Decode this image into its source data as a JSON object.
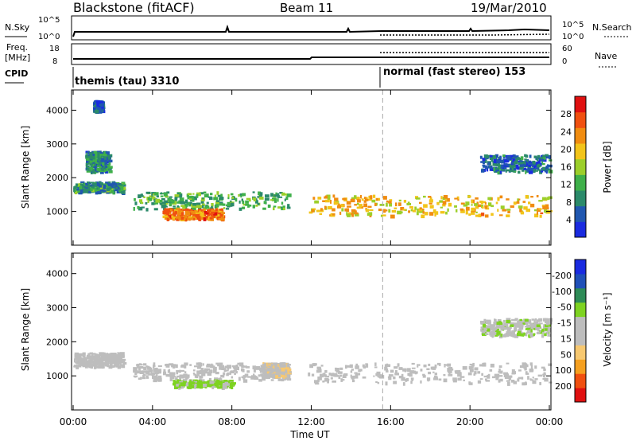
{
  "header": {
    "station": "Blackstone (fitACF)",
    "beam": "Beam 11",
    "date": "19/Mar/2010"
  },
  "status_panels": {
    "nsky": {
      "label": "N.Sky",
      "tick_labels": [
        "10^5",
        "10^0"
      ],
      "right_label": "N.Search",
      "right_tick_labels": [
        "10^5",
        "10^0"
      ]
    },
    "freq": {
      "label_line1": "Freq.",
      "label_line2": "[MHz]",
      "tick_labels": [
        "18",
        "8"
      ],
      "right_label": "Nave",
      "right_tick_labels": [
        "60",
        "0"
      ]
    },
    "cpid": {
      "label": "CPID",
      "segments": [
        {
          "text": "themis (tau) 3310",
          "start_hour": 0
        },
        {
          "text": "normal (fast stereo) 153",
          "start_hour": 15.6
        }
      ]
    }
  },
  "x_axis": {
    "label": "Time UT",
    "range_hours": [
      0,
      24
    ],
    "ticks": [
      {
        "label": "00:00",
        "hour": 0
      },
      {
        "label": "04:00",
        "hour": 4
      },
      {
        "label": "08:00",
        "hour": 8
      },
      {
        "label": "12:00",
        "hour": 12
      },
      {
        "label": "16:00",
        "hour": 16
      },
      {
        "label": "20:00",
        "hour": 20
      },
      {
        "label": "00:00",
        "hour": 24
      }
    ]
  },
  "colors": {
    "power": [
      "#1a2be0",
      "#2057b0",
      "#2b8a6a",
      "#3fb04a",
      "#9ccf2a",
      "#f2c41a",
      "#f08c10",
      "#f05010",
      "#e01010"
    ],
    "velocity": [
      "#e01010",
      "#f05010",
      "#f5a020",
      "#f7c870",
      "#bdbdbd",
      "#bdbdbd",
      "#7ed321",
      "#2e8b57",
      "#2050b8",
      "#1a2be0"
    ]
  },
  "chart_data": [
    {
      "type": "heatmap",
      "name": "power",
      "ylabel": "Slant Range [km]",
      "ylim": [
        0,
        4600
      ],
      "yticks": [
        1000,
        2000,
        3000,
        4000
      ],
      "colorbar": {
        "label": "Power [dB]",
        "ticks": [
          "4",
          "8",
          "12",
          "16",
          "20",
          "24",
          "28"
        ],
        "range": [
          0,
          32
        ]
      },
      "scatter_regions": [
        {
          "t0": 0.0,
          "t1": 2.5,
          "r0": 1600,
          "r1": 1900,
          "value": 10
        },
        {
          "t0": 0.6,
          "t1": 1.8,
          "r0": 2200,
          "r1": 2800,
          "value": 8
        },
        {
          "t0": 1.0,
          "t1": 1.4,
          "r0": 4000,
          "r1": 4300,
          "value": 6
        },
        {
          "t0": 3.0,
          "t1": 10.8,
          "r0": 1100,
          "r1": 1600,
          "value": 12
        },
        {
          "t0": 4.5,
          "t1": 7.5,
          "r0": 800,
          "r1": 1100,
          "value": 24
        },
        {
          "t0": 11.8,
          "t1": 24.0,
          "r0": 900,
          "r1": 1500,
          "value": 20
        },
        {
          "t0": 20.5,
          "t1": 24.0,
          "r0": 2200,
          "r1": 2700,
          "value": 6
        }
      ],
      "vertical_marker_hour": 15.6
    },
    {
      "type": "heatmap",
      "name": "velocity",
      "ylabel": "Slant Range [km]",
      "ylim": [
        0,
        4600
      ],
      "yticks": [
        1000,
        2000,
        3000,
        4000
      ],
      "colorbar": {
        "label": "Velocity [m s⁻¹]",
        "ticks": [
          "200",
          "100",
          "50",
          "15",
          "-15",
          "-50",
          "-100",
          "-200"
        ],
        "range": [
          -250,
          250
        ]
      },
      "scatter_regions": [
        {
          "t0": 0.0,
          "t1": 2.5,
          "r0": 1300,
          "r1": 1700,
          "value": 0
        },
        {
          "t0": 3.0,
          "t1": 10.8,
          "r0": 900,
          "r1": 1400,
          "value": 0
        },
        {
          "t0": 5.0,
          "t1": 8.0,
          "r0": 700,
          "r1": 900,
          "value": -60
        },
        {
          "t0": 9.5,
          "t1": 10.8,
          "r0": 1000,
          "r1": 1400,
          "value": 40
        },
        {
          "t0": 11.8,
          "t1": 24.0,
          "r0": 800,
          "r1": 1400,
          "value": 0
        },
        {
          "t0": 20.5,
          "t1": 24.0,
          "r0": 2200,
          "r1": 2700,
          "value": -40
        }
      ],
      "vertical_marker_hour": 15.6
    }
  ]
}
